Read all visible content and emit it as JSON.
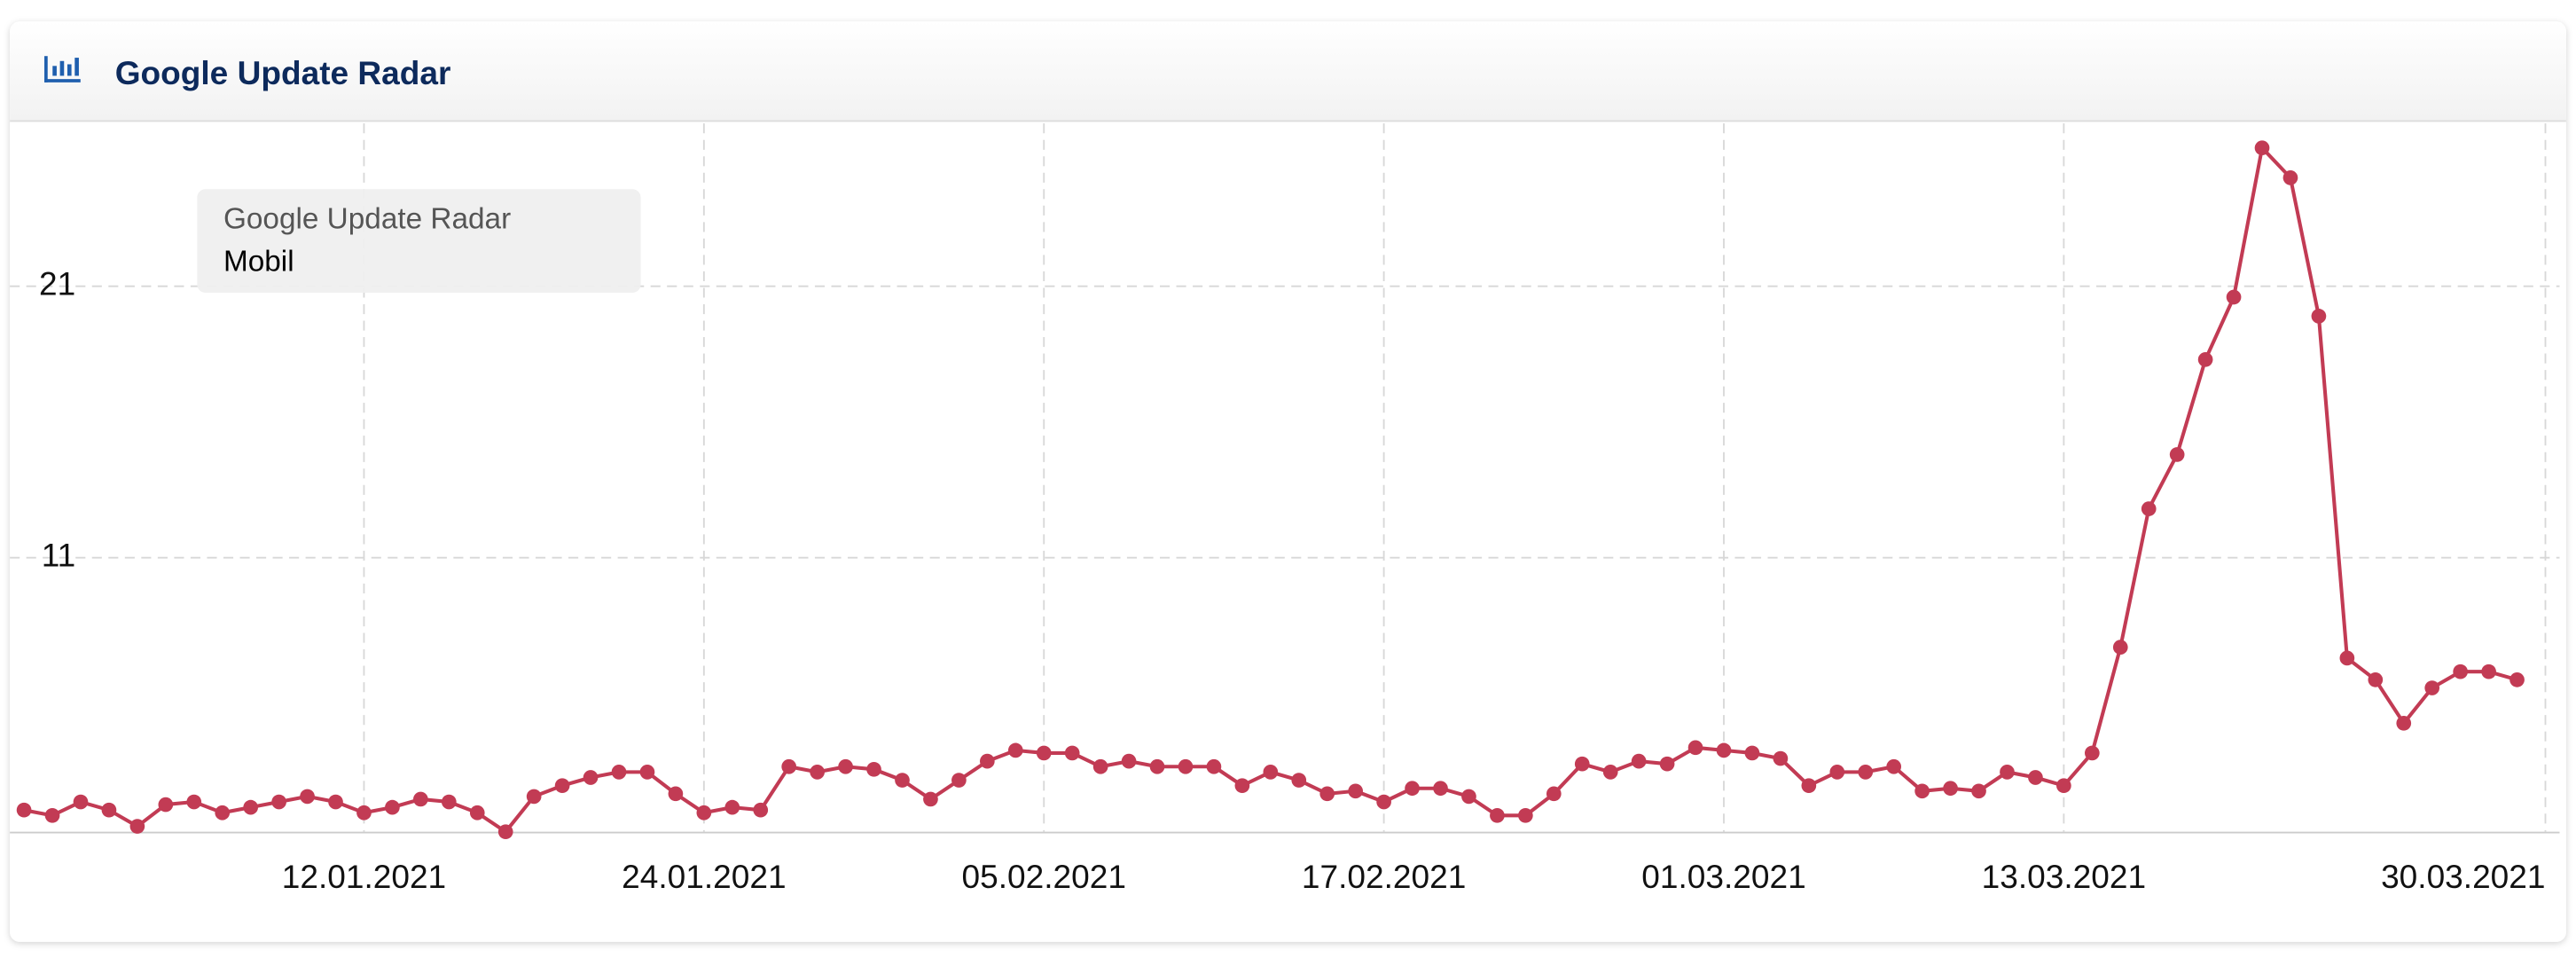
{
  "chart_data": {
    "type": "line",
    "title": "Google Update Radar",
    "legend_title": "Google Update Radar",
    "x": [
      "2020-12-31",
      "2021-01-01",
      "2021-01-02",
      "2021-01-03",
      "2021-01-04",
      "2021-01-05",
      "2021-01-06",
      "2021-01-07",
      "2021-01-08",
      "2021-01-09",
      "2021-01-10",
      "2021-01-11",
      "2021-01-12",
      "2021-01-13",
      "2021-01-14",
      "2021-01-15",
      "2021-01-16",
      "2021-01-17",
      "2021-01-18",
      "2021-01-19",
      "2021-01-20",
      "2021-01-21",
      "2021-01-22",
      "2021-01-23",
      "2021-01-24",
      "2021-01-25",
      "2021-01-26",
      "2021-01-27",
      "2021-01-28",
      "2021-01-29",
      "2021-01-30",
      "2021-01-31",
      "2021-02-01",
      "2021-02-02",
      "2021-02-03",
      "2021-02-04",
      "2021-02-05",
      "2021-02-06",
      "2021-02-07",
      "2021-02-08",
      "2021-02-09",
      "2021-02-10",
      "2021-02-11",
      "2021-02-12",
      "2021-02-13",
      "2021-02-14",
      "2021-02-15",
      "2021-02-16",
      "2021-02-17",
      "2021-02-18",
      "2021-02-19",
      "2021-02-20",
      "2021-02-21",
      "2021-02-22",
      "2021-02-23",
      "2021-02-24",
      "2021-02-25",
      "2021-02-26",
      "2021-02-27",
      "2021-02-28",
      "2021-03-01",
      "2021-03-02",
      "2021-03-03",
      "2021-03-04",
      "2021-03-05",
      "2021-03-06",
      "2021-03-07",
      "2021-03-08",
      "2021-03-09",
      "2021-03-10",
      "2021-03-11",
      "2021-03-12",
      "2021-03-13",
      "2021-03-14",
      "2021-03-15",
      "2021-03-16",
      "2021-03-17",
      "2021-03-18",
      "2021-03-19",
      "2021-03-20",
      "2021-03-21",
      "2021-03-22",
      "2021-03-23",
      "2021-03-24",
      "2021-03-25",
      "2021-03-26",
      "2021-03-27",
      "2021-03-28",
      "2021-03-29"
    ],
    "series": [
      {
        "name": "Mobil",
        "color": "#c23b54",
        "values": [
          1.7,
          1.5,
          2.0,
          1.7,
          1.1,
          1.9,
          2.0,
          1.6,
          1.8,
          2.0,
          2.2,
          2.0,
          1.6,
          1.8,
          2.1,
          2.0,
          1.6,
          0.9,
          2.2,
          2.6,
          2.9,
          3.1,
          3.1,
          2.3,
          1.6,
          1.8,
          1.7,
          3.3,
          3.1,
          3.3,
          3.2,
          2.8,
          2.1,
          2.8,
          3.5,
          3.9,
          3.8,
          3.8,
          3.3,
          3.5,
          3.3,
          3.3,
          3.3,
          2.6,
          3.1,
          2.8,
          2.3,
          2.4,
          2.0,
          2.5,
          2.5,
          2.2,
          1.5,
          1.5,
          2.3,
          3.4,
          3.1,
          3.5,
          3.4,
          4.0,
          3.9,
          3.8,
          3.6,
          2.6,
          3.1,
          3.1,
          3.3,
          2.4,
          2.5,
          2.4,
          3.1,
          2.9,
          2.6,
          3.8,
          7.7,
          12.8,
          14.8,
          18.3,
          20.6,
          26.1,
          25.0,
          19.9,
          7.3,
          6.5,
          4.9,
          6.2,
          6.8,
          6.8,
          6.5
        ]
      }
    ],
    "xlim": [
      "2020-12-30T12:00:00Z",
      "2021-03-30T12:00:00Z"
    ],
    "xticks": [
      {
        "value": "2021-01-12",
        "label": "12.01.2021"
      },
      {
        "value": "2021-01-24",
        "label": "24.01.2021"
      },
      {
        "value": "2021-02-05",
        "label": "05.02.2021"
      },
      {
        "value": "2021-02-17",
        "label": "17.02.2021"
      },
      {
        "value": "2021-03-01",
        "label": "01.03.2021"
      },
      {
        "value": "2021-03-13",
        "label": "13.03.2021"
      },
      {
        "value": "2021-03-30",
        "label": "30.03.2021"
      }
    ],
    "ylim": [
      0.9,
      27
    ],
    "yticks": [
      11,
      21
    ],
    "grid": true
  }
}
